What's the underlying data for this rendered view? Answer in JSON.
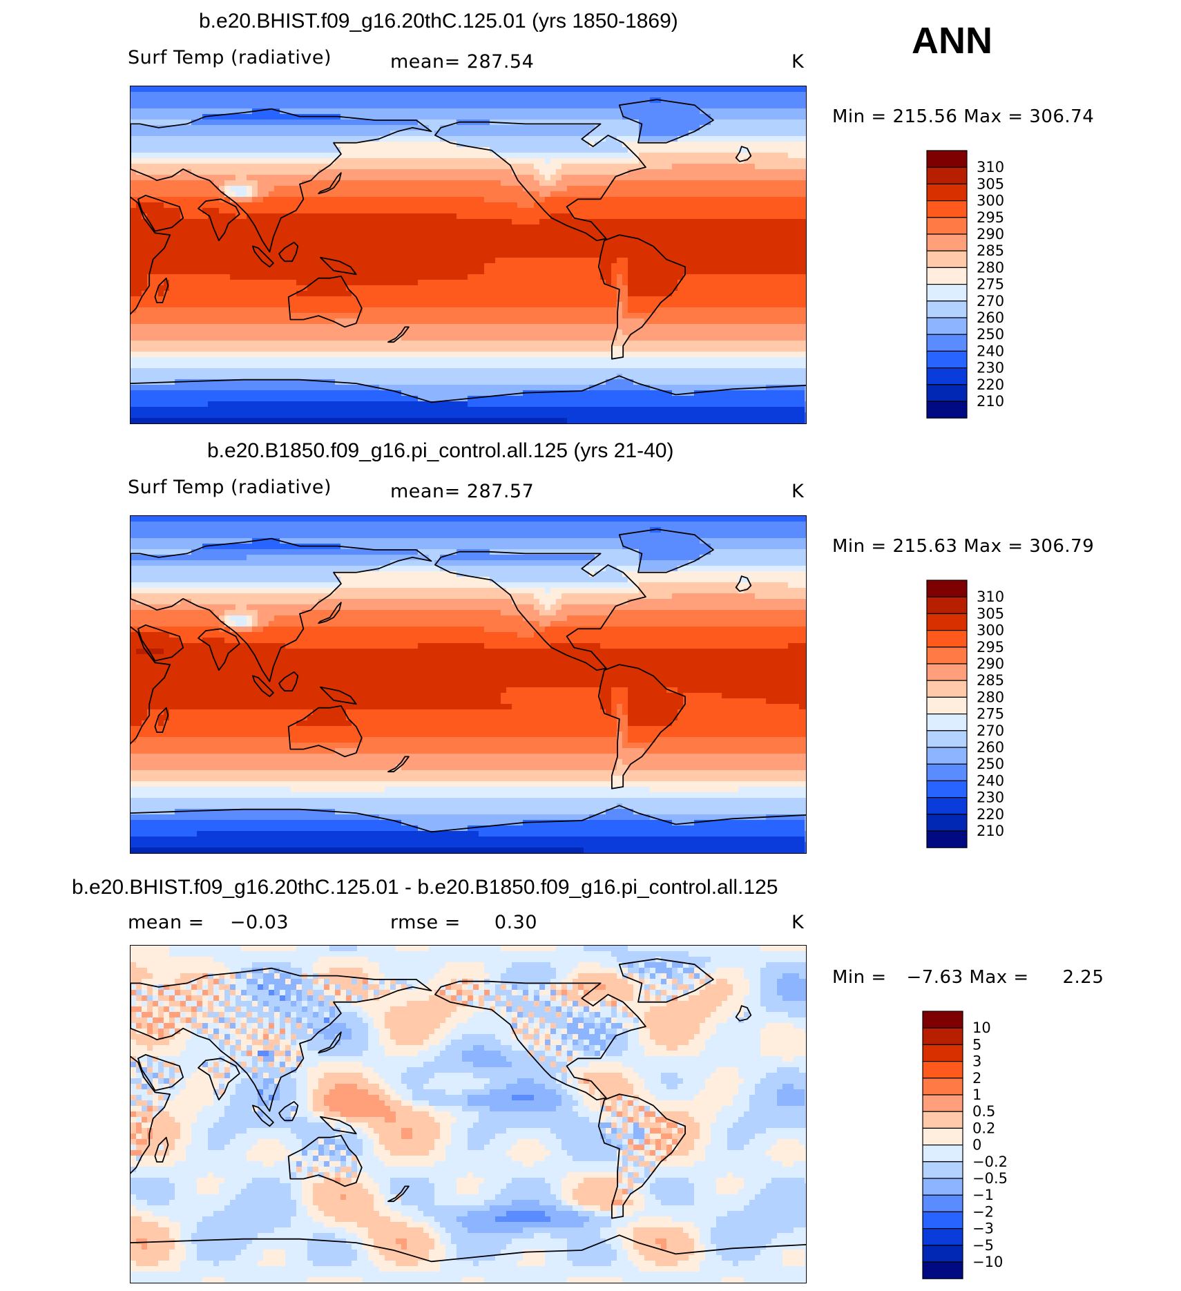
{
  "season": "ANN",
  "panels": [
    {
      "id": "case",
      "title": "b.e20.BHIST.f09_g16.20thC.125.01 (yrs 1850-1869)",
      "variable": "Surf Temp (radiative)",
      "mean_label": "mean=",
      "mean_value": "287.54",
      "units": "K",
      "min_label": "Min =",
      "min_value": "215.56",
      "max_label": "Max =",
      "max_value": "306.74",
      "colorbar": {
        "levels": [
          "310",
          "305",
          "300",
          "295",
          "290",
          "285",
          "280",
          "275",
          "270",
          "260",
          "250",
          "240",
          "230",
          "220",
          "210"
        ],
        "colors": [
          "#7f0000",
          "#b81e00",
          "#d93000",
          "#ff5a1e",
          "#ff7a45",
          "#ffa07a",
          "#ffc9aa",
          "#ffeedd",
          "#dceeff",
          "#b4d2ff",
          "#8cb4ff",
          "#5a8cff",
          "#2864ff",
          "#0a3cdc",
          "#0028b4",
          "#000a82"
        ]
      }
    },
    {
      "id": "control",
      "title": "b.e20.B1850.f09_g16.pi_control.all.125 (yrs 21-40)",
      "variable": "Surf Temp (radiative)",
      "mean_label": "mean=",
      "mean_value": "287.57",
      "units": "K",
      "min_label": "Min =",
      "min_value": "215.63",
      "max_label": "Max =",
      "max_value": "306.79",
      "colorbar": {
        "levels": [
          "310",
          "305",
          "300",
          "295",
          "290",
          "285",
          "280",
          "275",
          "270",
          "260",
          "250",
          "240",
          "230",
          "220",
          "210"
        ],
        "colors": [
          "#7f0000",
          "#b81e00",
          "#d93000",
          "#ff5a1e",
          "#ff7a45",
          "#ffa07a",
          "#ffc9aa",
          "#ffeedd",
          "#dceeff",
          "#b4d2ff",
          "#8cb4ff",
          "#5a8cff",
          "#2864ff",
          "#0a3cdc",
          "#0028b4",
          "#000a82"
        ]
      }
    },
    {
      "id": "diff",
      "title": "b.e20.BHIST.f09_g16.20thC.125.01 - b.e20.B1850.f09_g16.pi_control.all.125",
      "mean_label": "mean =",
      "mean_value": "−0.03",
      "rmse_label": "rmse =",
      "rmse_value": "0.30",
      "units": "K",
      "min_label": "Min =",
      "min_value": "−7.63",
      "max_label": "Max =",
      "max_value": "2.25",
      "colorbar": {
        "levels": [
          "10",
          "5",
          "3",
          "2",
          "1",
          "0.5",
          "0.2",
          "0",
          "−0.2",
          "−0.5",
          "−1",
          "−2",
          "−3",
          "−5",
          "−10"
        ],
        "colors": [
          "#7f0000",
          "#b81e00",
          "#d93000",
          "#ff5a1e",
          "#ff7a45",
          "#ffa07a",
          "#ffc9aa",
          "#ffeedd",
          "#dceeff",
          "#b4d2ff",
          "#8cb4ff",
          "#5a8cff",
          "#2864ff",
          "#0a3cdc",
          "#0028b4",
          "#000a82"
        ]
      }
    }
  ],
  "chart_data": [
    {
      "type": "heatmap",
      "title": "b.e20.BHIST.f09_g16.20thC.125.01 (yrs 1850-1869)",
      "variable": "Surf Temp (radiative)",
      "units": "K",
      "mean": 287.54,
      "min": 215.56,
      "max": 306.74,
      "contour_levels": [
        210,
        220,
        230,
        240,
        250,
        260,
        270,
        275,
        280,
        285,
        290,
        295,
        300,
        305,
        310
      ],
      "x_range": [
        30,
        390
      ],
      "y_range": [
        -90,
        90
      ]
    },
    {
      "type": "heatmap",
      "title": "b.e20.B1850.f09_g16.pi_control.all.125 (yrs 21-40)",
      "variable": "Surf Temp (radiative)",
      "units": "K",
      "mean": 287.57,
      "min": 215.63,
      "max": 306.79,
      "contour_levels": [
        210,
        220,
        230,
        240,
        250,
        260,
        270,
        275,
        280,
        285,
        290,
        295,
        300,
        305,
        310
      ],
      "x_range": [
        30,
        390
      ],
      "y_range": [
        -90,
        90
      ]
    },
    {
      "type": "heatmap",
      "title": "b.e20.BHIST.f09_g16.20thC.125.01 - b.e20.B1850.f09_g16.pi_control.all.125",
      "units": "K",
      "mean": -0.03,
      "rmse": 0.3,
      "min": -7.63,
      "max": 2.25,
      "contour_levels": [
        -10,
        -5,
        -3,
        -2,
        -1,
        -0.5,
        -0.2,
        0,
        0.2,
        0.5,
        1,
        2,
        3,
        5,
        10
      ],
      "x_range": [
        30,
        390
      ],
      "y_range": [
        -90,
        90
      ]
    }
  ]
}
